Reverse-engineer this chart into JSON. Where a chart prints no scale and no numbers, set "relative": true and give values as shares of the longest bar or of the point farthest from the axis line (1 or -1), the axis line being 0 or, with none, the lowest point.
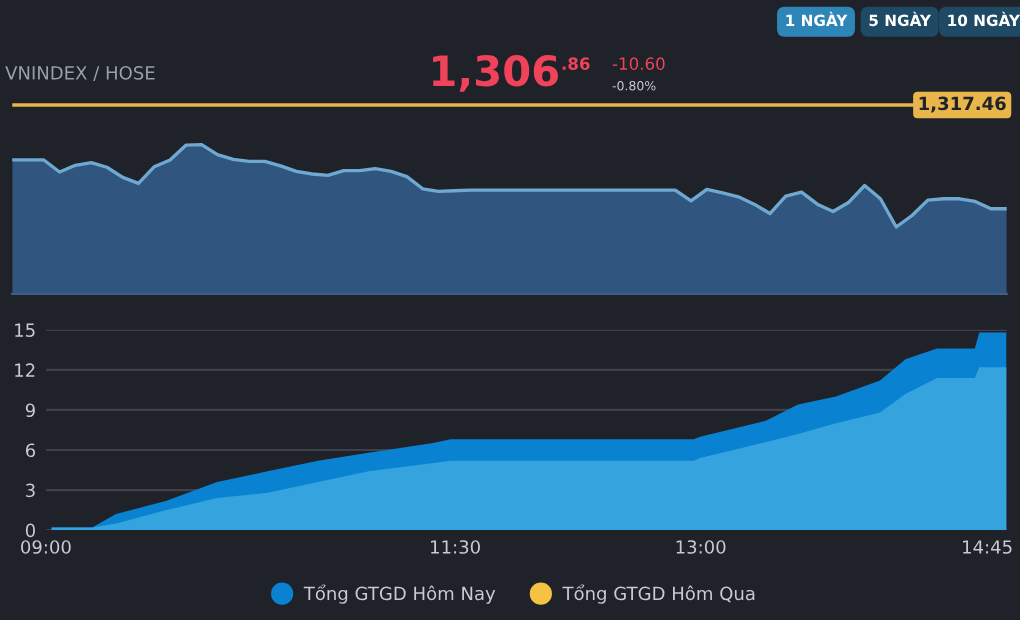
{
  "chart_data": [
    {
      "type": "area",
      "title": "VNINDEX / HOSE",
      "relative": true,
      "grid": false,
      "legend": false,
      "marker": "none",
      "line_style": "solid",
      "categories": [
        null,
        null,
        null,
        null,
        null,
        null,
        null,
        null,
        null,
        null,
        null,
        null,
        null,
        null,
        null,
        null,
        null,
        null,
        null,
        null,
        null,
        null,
        null,
        null,
        null,
        null,
        null,
        null,
        null,
        null,
        null,
        null,
        null,
        null,
        null,
        null,
        null,
        null,
        null,
        null,
        null,
        null,
        null,
        null,
        null,
        null,
        null,
        null,
        null,
        null,
        null,
        null,
        null,
        null,
        null,
        null,
        null,
        null,
        null,
        null,
        null,
        null,
        null,
        null
      ],
      "series": [
        {
          "color": "#6fa8d0",
          "values": [
            0.897,
            0.897,
            0.897,
            0.816,
            0.861,
            0.879,
            0.848,
            0.78,
            0.74,
            0.852,
            0.897,
            0.996,
            1,
            0.933,
            0.901,
            0.888,
            0.888,
            0.857,
            0.821,
            0.803,
            0.794,
            0.825,
            0.825,
            0.839,
            0.821,
            0.785,
            0.704,
            0.686,
            0.691,
            0.695,
            0.695,
            0.695,
            0.695,
            0.695,
            0.695,
            0.695,
            0.695,
            0.695,
            0.695,
            0.695,
            0.695,
            0.695,
            0.695,
            0.623,
            0.7,
            0.677,
            0.65,
            0.601,
            0.538,
            0.655,
            0.682,
            0.601,
            0.552,
            0.614,
            0.726,
            0.637,
            0.448,
            0.525,
            0.628,
            0.637,
            0.637,
            0.619,
            0.57,
            0.57
          ]
        }
      ],
      "ref_lines": [
        {
          "axis": "y",
          "value": 1.265,
          "color": "#e8b64a"
        }
      ],
      "annotations": [
        "1,306",
        ".86",
        "-10.60",
        "-0.80%",
        "1 NGÀY",
        "5 NGÀY",
        "10 NGÀY",
        "1,317.46"
      ]
    },
    {
      "type": "area",
      "grid": "y",
      "legend": "bottom",
      "xlim": [
        9.0,
        14.87
      ],
      "ylim": [
        0,
        15
      ],
      "yticks": [
        0,
        3,
        6,
        9,
        12,
        15
      ],
      "xticks": [
        {
          "value": 9.0,
          "label": "09:00"
        },
        {
          "value": 11.5,
          "label": "11:30"
        },
        {
          "value": 13.0,
          "label": "13:00"
        },
        {
          "value": 14.75,
          "label": "14:45"
        }
      ],
      "x": [
        9.035,
        9.282,
        9.428,
        9.737,
        10.046,
        10.354,
        10.663,
        10.971,
        11.357,
        11.473,
        12.958,
        12.997,
        13.402,
        13.595,
        13.826,
        14.096,
        14.251,
        14.444,
        14.675,
        14.702,
        14.868
      ],
      "series": [
        {
          "name": "Tổng GTGD Hôm Nay",
          "color": "#0a82d2",
          "values": [
            0.2,
            0.2,
            1.2,
            2.2,
            3.6,
            4.4,
            5.2,
            5.8,
            6.5,
            6.8,
            6.8,
            7.0,
            8.2,
            9.4,
            10,
            11.2,
            12.8,
            13.6,
            13.6,
            14.8,
            14.8
          ]
        },
        {
          "color": "#35a3dd",
          "values": [
            0.2,
            0.2,
            0.5,
            1.5,
            2.4,
            2.8,
            3.6,
            4.4,
            5.0,
            5.2,
            5.2,
            5.4,
            6.6,
            7.2,
            8,
            8.8,
            10.2,
            11.4,
            11.4,
            12.2,
            12.2
          ]
        },
        {
          "name": "Tổng GTGD Hôm Qua",
          "color": "#f5c242",
          "values": [
            null,
            null,
            null,
            null,
            null,
            null,
            null,
            null,
            null,
            null,
            null,
            null,
            null,
            null,
            null,
            null,
            null,
            null,
            null,
            null,
            null
          ]
        }
      ]
    }
  ]
}
